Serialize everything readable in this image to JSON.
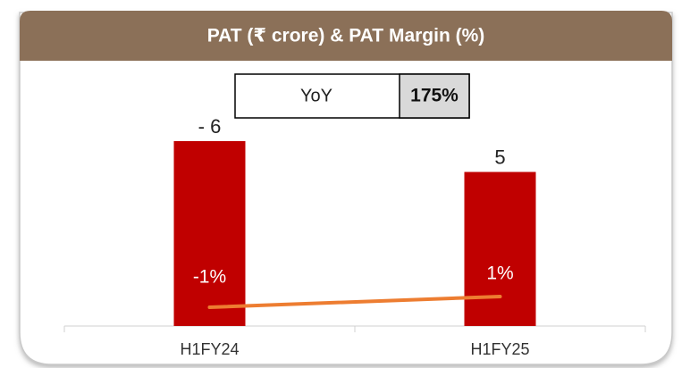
{
  "chart_data": {
    "type": "bar",
    "title": "PAT (₹ crore) & PAT Margin (%)",
    "annotation": {
      "label": "YoY",
      "value": "175%"
    },
    "categories": [
      "H1FY24",
      "H1FY25"
    ],
    "series": [
      {
        "name": "PAT (₹ crore)",
        "type": "bar",
        "color": "#c00000",
        "values": [
          -6,
          5
        ],
        "value_labels": [
          "- 6",
          "5"
        ]
      },
      {
        "name": "PAT Margin (%)",
        "type": "line",
        "axis": "y2",
        "color": "#ed7d31",
        "values": [
          -1,
          1
        ],
        "value_labels": [
          "-1%",
          "1%"
        ]
      }
    ]
  }
}
